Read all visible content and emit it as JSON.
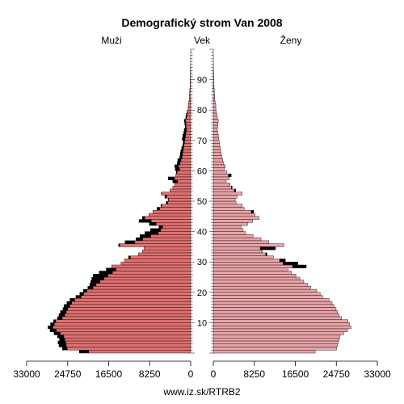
{
  "chart_data": {
    "type": "population-pyramid",
    "title": "Demografický strom Van 2008",
    "left_label": "Muži",
    "center_label": "Vek",
    "right_label": "Ženy",
    "source": "www.iz.sk/RTRB2",
    "age_range": [
      0,
      100
    ],
    "xlim": [
      0,
      33000
    ],
    "x_ticks_left": [
      "33000",
      "24750",
      "16500",
      "8250",
      "0"
    ],
    "x_ticks_right": [
      "0",
      "8250",
      "16500",
      "24750",
      "33000"
    ],
    "age_ticks": [
      10,
      20,
      30,
      40,
      50,
      60,
      70,
      80,
      90
    ],
    "colors": {
      "male_bar": "#e07070",
      "female_bar": "#e8a3a8",
      "excess": "#000000",
      "outline": "#000000"
    },
    "male": [
      22400,
      25800,
      26500,
      26700,
      26400,
      26800,
      27500,
      28300,
      28700,
      28200,
      27600,
      26800,
      26500,
      26200,
      25700,
      25500,
      24900,
      24300,
      23100,
      22300,
      21600,
      20700,
      20300,
      20100,
      19900,
      19600,
      18400,
      17000,
      15900,
      14000,
      13300,
      12500,
      10500,
      9700,
      9400,
      14500,
      13200,
      11000,
      10200,
      9200,
      8100,
      6400,
      8300,
      10400,
      9700,
      8400,
      7600,
      6800,
      6000,
      4900,
      4500,
      5200,
      5900,
      4200,
      3600,
      3200,
      3600,
      4500,
      3000,
      2900,
      3100,
      3200,
      2700,
      2600,
      2200,
      2100,
      2000,
      1800,
      1600,
      1500,
      1700,
      1600,
      1400,
      1300,
      1100,
      1200,
      1300,
      1000,
      900,
      700,
      500,
      500,
      400,
      300,
      300,
      200,
      200,
      100,
      100,
      100,
      100,
      80,
      60,
      40,
      30,
      20,
      10,
      10,
      5,
      5
    ],
    "female": [
      20500,
      24800,
      25000,
      25100,
      25300,
      25500,
      26200,
      27000,
      27700,
      27400,
      27100,
      25800,
      25300,
      25000,
      24700,
      24300,
      23900,
      23300,
      22000,
      21500,
      20800,
      19600,
      19000,
      18200,
      17400,
      16600,
      15700,
      15000,
      18700,
      17000,
      14500,
      12100,
      10800,
      9800,
      12500,
      14200,
      11200,
      9600,
      8000,
      6500,
      6000,
      5600,
      6900,
      7900,
      9200,
      8400,
      8100,
      6200,
      5800,
      4600,
      4400,
      4800,
      5800,
      4500,
      3800,
      3300,
      2600,
      3200,
      3600,
      2700,
      2200,
      2400,
      2100,
      1900,
      1700,
      1600,
      1500,
      1400,
      1300,
      1200,
      1100,
      1000,
      900,
      800,
      900,
      900,
      1000,
      800,
      700,
      600,
      500,
      500,
      400,
      300,
      300,
      200,
      200,
      150,
      100,
      100,
      100,
      80,
      60,
      40,
      30,
      20,
      10,
      10,
      5,
      5
    ]
  }
}
